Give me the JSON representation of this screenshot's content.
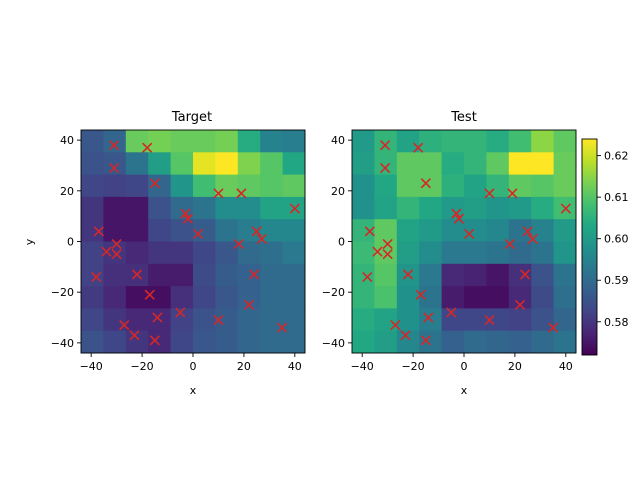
{
  "chart_data": [
    {
      "type": "heatmap",
      "title": "Target",
      "xlabel": "x",
      "ylabel": "y",
      "xlim": [
        -44,
        44
      ],
      "ylim": [
        -44,
        44
      ],
      "xticks": [
        -40,
        -20,
        0,
        20,
        40
      ],
      "yticks": [
        -40,
        -20,
        0,
        20,
        40
      ],
      "grid_x_edges": [
        -44,
        -35.2,
        -26.4,
        -17.6,
        -8.8,
        0,
        8.8,
        17.6,
        26.4,
        35.2,
        44
      ],
      "grid_y_edges": [
        -44,
        -35.2,
        -26.4,
        -17.6,
        -8.8,
        0,
        8.8,
        17.6,
        26.4,
        35.2,
        44
      ],
      "z_rows_top_to_bottom": [
        [
          0.586,
          0.589,
          0.612,
          0.613,
          0.612,
          0.612,
          0.613,
          0.604,
          0.595,
          0.594
        ],
        [
          0.585,
          0.586,
          0.592,
          0.601,
          0.61,
          0.622,
          0.624,
          0.614,
          0.61,
          0.603
        ],
        [
          0.583,
          0.582,
          0.583,
          0.589,
          0.599,
          0.608,
          0.612,
          0.611,
          0.61,
          0.611
        ],
        [
          0.58,
          0.575,
          0.575,
          0.585,
          0.59,
          0.592,
          0.597,
          0.597,
          0.602,
          0.602
        ],
        [
          0.58,
          0.575,
          0.575,
          0.583,
          0.585,
          0.587,
          0.592,
          0.594,
          0.596,
          0.596
        ],
        [
          0.582,
          0.58,
          0.578,
          0.58,
          0.58,
          0.583,
          0.586,
          0.59,
          0.591,
          0.593
        ],
        [
          0.582,
          0.579,
          0.579,
          0.576,
          0.576,
          0.584,
          0.587,
          0.588,
          0.59,
          0.59
        ],
        [
          0.581,
          0.578,
          0.574,
          0.574,
          0.579,
          0.583,
          0.586,
          0.588,
          0.59,
          0.59
        ],
        [
          0.583,
          0.58,
          0.578,
          0.578,
          0.582,
          0.585,
          0.587,
          0.589,
          0.59,
          0.59
        ],
        [
          0.585,
          0.583,
          0.58,
          0.578,
          0.583,
          0.586,
          0.587,
          0.589,
          0.59,
          0.59
        ]
      ],
      "points": {
        "x": [
          -31,
          -18,
          -31,
          -15,
          -3,
          10,
          19,
          40,
          -2,
          2,
          -37,
          -30,
          25,
          27,
          -30,
          18,
          -38,
          -34,
          -22,
          24,
          -17,
          -27,
          10,
          22,
          35,
          -23,
          -14,
          -5,
          -15
        ],
        "y": [
          38,
          37,
          29,
          23,
          11,
          19,
          19,
          13,
          9,
          3,
          4,
          -1,
          4,
          1,
          -5,
          -1,
          -14,
          -4,
          -13,
          -13,
          -21,
          -33,
          -31,
          -25,
          -34,
          -37,
          -30,
          -28,
          -39
        ],
        "marker": "x",
        "color": "#d62728"
      }
    },
    {
      "type": "heatmap",
      "title": "Test",
      "xlabel": "x",
      "ylabel": "",
      "xlim": [
        -44,
        44
      ],
      "ylim": [
        -44,
        44
      ],
      "xticks": [
        -40,
        -20,
        0,
        20,
        40
      ],
      "yticks": [
        -40,
        -20,
        0,
        20,
        40
      ],
      "grid_x_edges": [
        -44,
        -35.2,
        -26.4,
        -17.6,
        -8.8,
        0,
        8.8,
        17.6,
        26.4,
        35.2,
        44
      ],
      "grid_y_edges": [
        -44,
        -35.2,
        -26.4,
        -17.6,
        -8.8,
        0,
        8.8,
        17.6,
        26.4,
        35.2,
        44
      ],
      "z_rows_top_to_bottom": [
        [
          0.6,
          0.606,
          0.602,
          0.605,
          0.606,
          0.606,
          0.604,
          0.608,
          0.615,
          0.611
        ],
        [
          0.601,
          0.606,
          0.611,
          0.611,
          0.604,
          0.606,
          0.611,
          0.624,
          0.624,
          0.612
        ],
        [
          0.598,
          0.603,
          0.611,
          0.611,
          0.605,
          0.602,
          0.606,
          0.611,
          0.61,
          0.612
        ],
        [
          0.598,
          0.602,
          0.606,
          0.603,
          0.6,
          0.601,
          0.599,
          0.6,
          0.604,
          0.608
        ],
        [
          0.606,
          0.611,
          0.602,
          0.6,
          0.597,
          0.597,
          0.596,
          0.592,
          0.595,
          0.6
        ],
        [
          0.607,
          0.611,
          0.601,
          0.597,
          0.593,
          0.593,
          0.592,
          0.59,
          0.592,
          0.599
        ],
        [
          0.606,
          0.61,
          0.599,
          0.593,
          0.578,
          0.577,
          0.575,
          0.579,
          0.585,
          0.592
        ],
        [
          0.606,
          0.609,
          0.598,
          0.592,
          0.576,
          0.574,
          0.574,
          0.578,
          0.584,
          0.591
        ],
        [
          0.604,
          0.602,
          0.598,
          0.594,
          0.583,
          0.583,
          0.583,
          0.582,
          0.585,
          0.589
        ],
        [
          0.603,
          0.601,
          0.596,
          0.592,
          0.588,
          0.59,
          0.589,
          0.588,
          0.59,
          0.592
        ]
      ],
      "points": {
        "x": [
          -31,
          -18,
          -31,
          -15,
          -3,
          10,
          19,
          40,
          -2,
          2,
          -37,
          -30,
          25,
          27,
          -30,
          18,
          -38,
          -34,
          -22,
          24,
          -17,
          -27,
          10,
          22,
          35,
          -23,
          -14,
          -5,
          -15
        ],
        "y": [
          38,
          37,
          29,
          23,
          11,
          19,
          19,
          13,
          9,
          3,
          4,
          -1,
          4,
          1,
          -5,
          -1,
          -14,
          -4,
          -13,
          -13,
          -21,
          -33,
          -31,
          -25,
          -34,
          -37,
          -30,
          -28,
          -39
        ],
        "marker": "x",
        "color": "#d62728"
      }
    }
  ],
  "colorbar": {
    "colormap": "viridis",
    "vmin": 0.572,
    "vmax": 0.624,
    "ticks": [
      0.58,
      0.59,
      0.6,
      0.61,
      0.62
    ],
    "tick_labels": [
      "0.58",
      "0.59",
      "0.60",
      "0.61",
      "0.62"
    ]
  }
}
